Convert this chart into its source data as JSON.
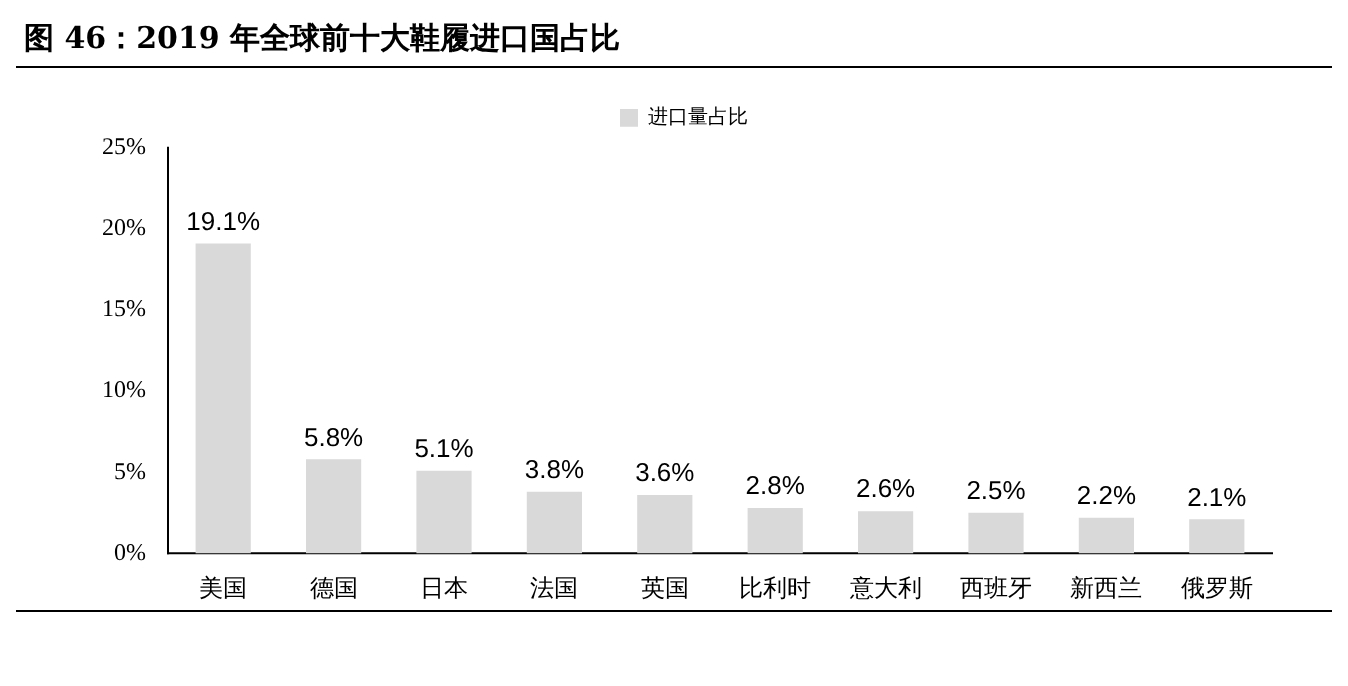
{
  "chart_data": {
    "type": "bar",
    "title": "图 46：2019 年全球前十大鞋履进口国占比",
    "categories": [
      "美国",
      "德国",
      "日本",
      "法国",
      "英国",
      "比利时",
      "意大利",
      "西班牙",
      "新西兰",
      "俄罗斯"
    ],
    "series": [
      {
        "name": "进口量占比",
        "color": "#d9d9d9",
        "values": [
          19.1,
          5.8,
          5.1,
          3.8,
          3.6,
          2.8,
          2.6,
          2.5,
          2.2,
          2.1
        ],
        "value_labels": [
          "19.1%",
          "5.8%",
          "5.1%",
          "3.8%",
          "3.6%",
          "2.8%",
          "2.6%",
          "2.5%",
          "2.2%",
          "2.1%"
        ]
      }
    ],
    "ylim": [
      0,
      25
    ],
    "yticks": [
      {
        "value": 0,
        "label": "0%"
      },
      {
        "value": 5,
        "label": "5%"
      },
      {
        "value": 10,
        "label": "10%"
      },
      {
        "value": 15,
        "label": "15%"
      },
      {
        "value": 20,
        "label": "20%"
      },
      {
        "value": 25,
        "label": "25%"
      }
    ],
    "grid": false,
    "legend": "top"
  }
}
